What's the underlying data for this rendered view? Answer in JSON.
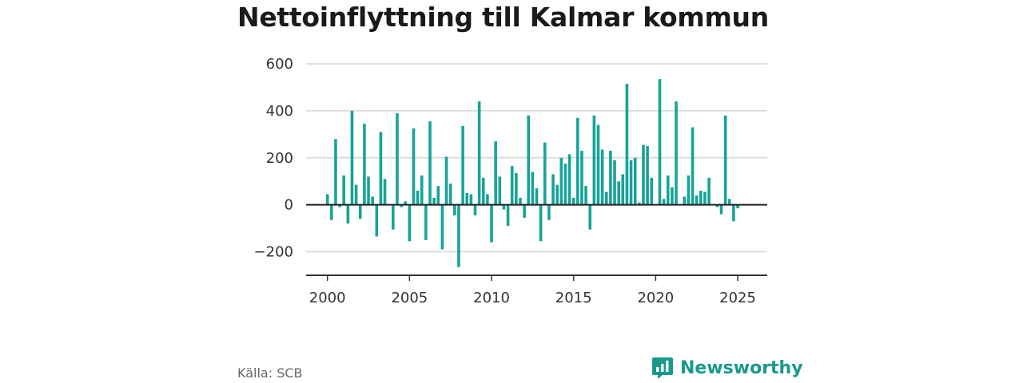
{
  "title": "Nettoinflyttning till Kalmar kommun",
  "source": "Källa: SCB",
  "brand": {
    "name": "Newsworthy",
    "logo_icon": "bar-chart-badge-icon"
  },
  "colors": {
    "bar": "#17a398",
    "zero_line": "#222222",
    "grid": "#d6d6d6",
    "brand": "#169a8c"
  },
  "chart_data": {
    "type": "bar",
    "title": "Nettoinflyttning till Kalmar kommun",
    "xlabel": "",
    "ylabel": "",
    "x_unit": "quarter",
    "x_start": 2000.0,
    "x_step": 0.25,
    "xlim": [
      1998.7,
      2026.8
    ],
    "ylim": [
      -300,
      600
    ],
    "yticks": [
      -200,
      0,
      200,
      400,
      600
    ],
    "ytick_labels": [
      "−200",
      "0",
      "200",
      "400",
      "600"
    ],
    "xticks": [
      2000,
      2005,
      2010,
      2015,
      2020,
      2025
    ],
    "xtick_labels": [
      "2000",
      "2005",
      "2010",
      "2015",
      "2020",
      "2025"
    ],
    "grid": true,
    "values": [
      45,
      -65,
      280,
      -10,
      125,
      -80,
      400,
      85,
      -60,
      345,
      120,
      35,
      -135,
      310,
      110,
      0,
      -105,
      390,
      -10,
      15,
      -155,
      325,
      60,
      125,
      -150,
      355,
      30,
      80,
      -190,
      205,
      90,
      -45,
      -265,
      335,
      50,
      45,
      -45,
      440,
      115,
      45,
      -160,
      270,
      120,
      -20,
      -90,
      165,
      135,
      30,
      -55,
      380,
      140,
      70,
      -155,
      265,
      -65,
      130,
      85,
      200,
      175,
      215,
      30,
      370,
      230,
      80,
      -105,
      380,
      340,
      235,
      55,
      230,
      190,
      100,
      130,
      515,
      190,
      200,
      10,
      255,
      250,
      115,
      0,
      535,
      25,
      125,
      75,
      440,
      0,
      35,
      125,
      330,
      40,
      60,
      55,
      115,
      0,
      -10,
      -40,
      380,
      25,
      -70,
      -15
    ]
  }
}
